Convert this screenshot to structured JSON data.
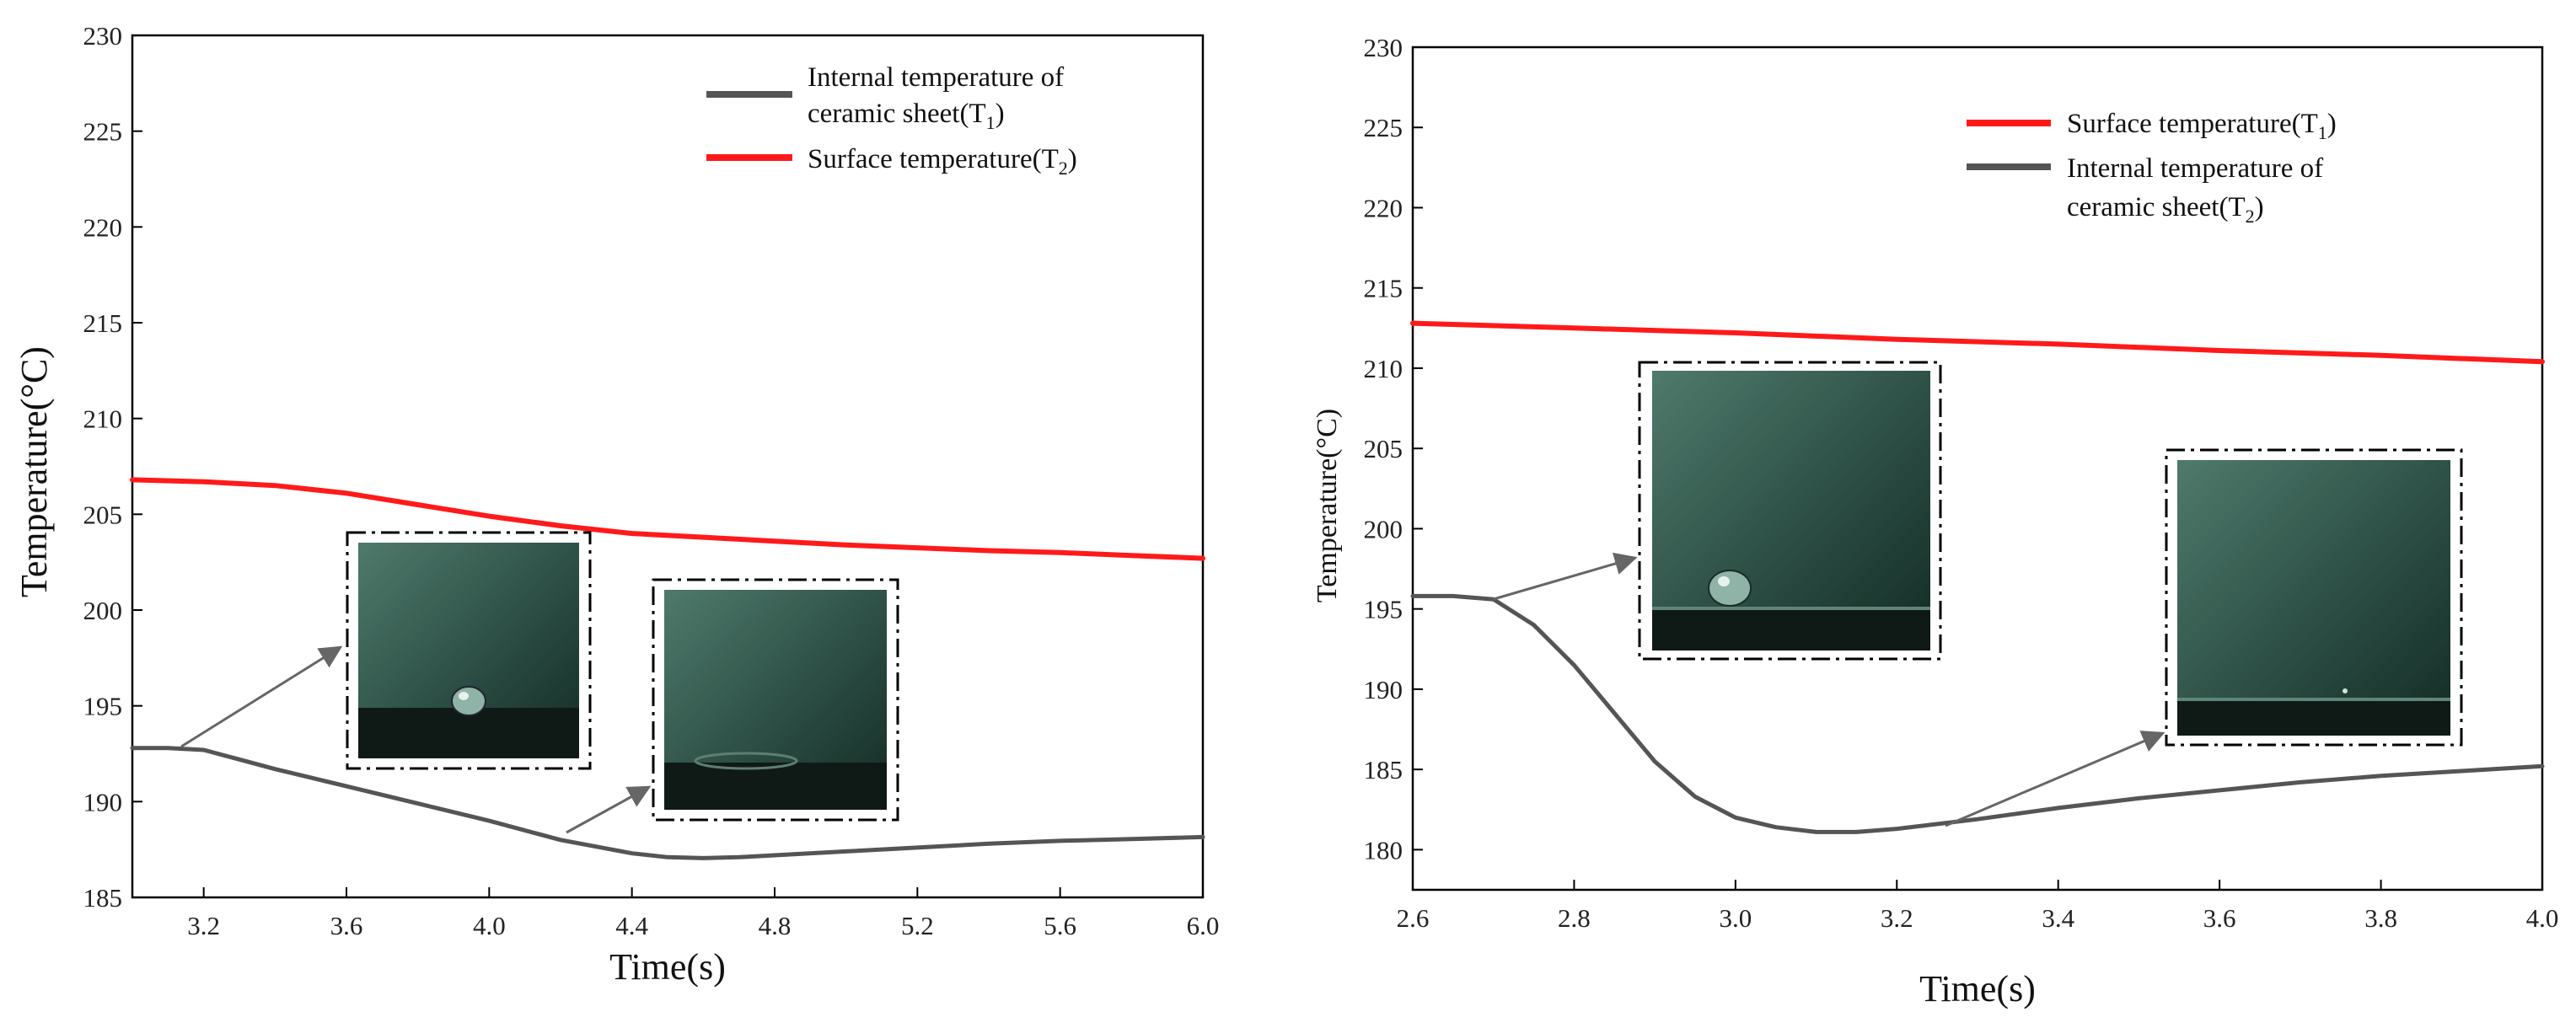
{
  "chart_data": [
    {
      "type": "line",
      "xlabel": "Time(s)",
      "ylabel": "Temperature(°C)",
      "xlim": [
        3.0,
        6.0
      ],
      "ylim": [
        185,
        230
      ],
      "xticks": [
        "3.2",
        "3.6",
        "4.0",
        "4.4",
        "4.8",
        "5.2",
        "5.6",
        "6.0"
      ],
      "yticks": [
        "185",
        "190",
        "195",
        "200",
        "205",
        "210",
        "215",
        "220",
        "225",
        "230"
      ],
      "legend_position": "top-right",
      "series": [
        {
          "name": "Internal temperature of ceramic sheet(T1)",
          "legend_line1": "Internal temperature of",
          "legend_line2": "ceramic sheet(T",
          "legend_sub": "1",
          "legend_close": ")",
          "color": "#555555",
          "x": [
            3.0,
            3.1,
            3.2,
            3.3,
            3.4,
            3.6,
            3.8,
            4.0,
            4.2,
            4.4,
            4.5,
            4.6,
            4.7,
            4.8,
            5.0,
            5.2,
            5.4,
            5.6,
            5.8,
            6.0
          ],
          "y": [
            192.8,
            192.8,
            192.7,
            192.2,
            191.7,
            190.8,
            189.9,
            189.0,
            188.0,
            187.3,
            187.1,
            187.05,
            187.1,
            187.2,
            187.4,
            187.6,
            187.8,
            187.95,
            188.05,
            188.15
          ]
        },
        {
          "name": "Surface temperature(T2)",
          "legend_line1": "Surface temperature(T",
          "legend_sub": "2",
          "legend_close": ")",
          "color": "#ff1a1a",
          "x": [
            3.0,
            3.2,
            3.4,
            3.6,
            3.8,
            4.0,
            4.2,
            4.4,
            4.6,
            4.8,
            5.0,
            5.2,
            5.4,
            5.6,
            5.8,
            6.0
          ],
          "y": [
            206.8,
            206.7,
            206.5,
            206.1,
            205.5,
            204.9,
            204.4,
            204.0,
            203.8,
            203.6,
            203.4,
            203.25,
            203.1,
            203.0,
            202.85,
            202.7
          ]
        }
      ]
    },
    {
      "type": "line",
      "xlabel": "Time(s)",
      "ylabel": "Temperature(°C)",
      "xlim": [
        2.6,
        4.0
      ],
      "ylim": [
        177.5,
        230
      ],
      "xticks": [
        "2.6",
        "2.8",
        "3.0",
        "3.2",
        "3.4",
        "3.6",
        "3.8",
        "4.0"
      ],
      "yticks": [
        "180",
        "185",
        "190",
        "195",
        "200",
        "205",
        "210",
        "215",
        "220",
        "225",
        "230"
      ],
      "legend_position": "top-right",
      "series": [
        {
          "name": "Surface temperature(T1)",
          "legend_line1": "Surface temperature(T",
          "legend_sub": "1",
          "legend_close": ")",
          "color": "#ff1a1a",
          "x": [
            2.6,
            2.8,
            3.0,
            3.2,
            3.4,
            3.6,
            3.8,
            4.0
          ],
          "y": [
            212.8,
            212.5,
            212.2,
            211.8,
            211.5,
            211.1,
            210.8,
            210.4
          ]
        },
        {
          "name": "Internal temperature of ceramic sheet(T2)",
          "legend_line1": "Internal temperature of",
          "legend_line2": "ceramic sheet(T",
          "legend_sub": "2",
          "legend_close": ")",
          "color": "#555555",
          "x": [
            2.6,
            2.65,
            2.7,
            2.75,
            2.8,
            2.85,
            2.9,
            2.95,
            3.0,
            3.05,
            3.1,
            3.15,
            3.2,
            3.3,
            3.4,
            3.5,
            3.6,
            3.7,
            3.8,
            3.9,
            4.0
          ],
          "y": [
            195.8,
            195.8,
            195.6,
            194.0,
            191.5,
            188.5,
            185.5,
            183.3,
            182.0,
            181.4,
            181.1,
            181.1,
            181.3,
            181.9,
            182.6,
            183.2,
            183.7,
            184.2,
            184.6,
            184.9,
            185.2
          ]
        }
      ]
    }
  ]
}
